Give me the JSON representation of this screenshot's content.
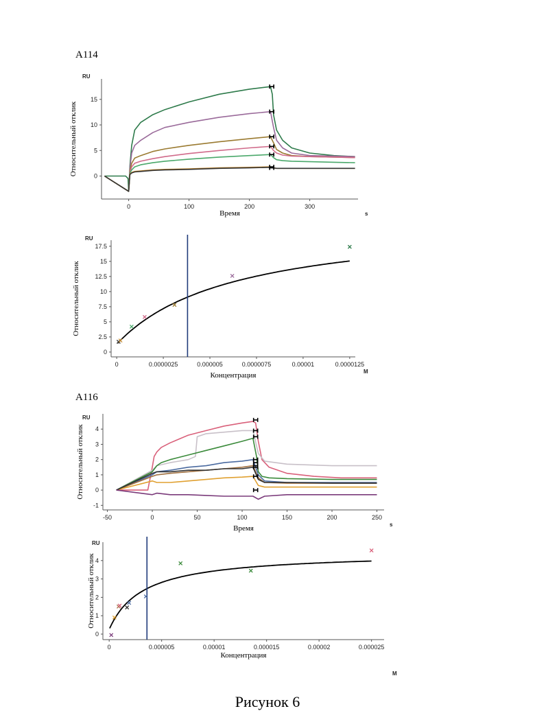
{
  "figure_caption": "Рисунок 6",
  "colors": {
    "axis": "#555555",
    "fit": "#000000",
    "vline": "#1f3a7a"
  },
  "chart_data": [
    {
      "id": "a114_sensorgram",
      "panel_label": "А114",
      "type": "line",
      "xlabel": "Время",
      "ylabel": "Относительный отклик",
      "x_unit": "s",
      "y_unit": "RU",
      "xlim": [
        -45,
        380
      ],
      "ylim": [
        -4.5,
        19
      ],
      "x_ticks": [
        0,
        100,
        200,
        300
      ],
      "y_ticks": [
        0,
        5,
        10,
        15
      ],
      "x_tick_labels": [
        "0",
        "100",
        "200",
        "300"
      ],
      "y_tick_labels": [
        "0",
        "5",
        "10",
        "15"
      ],
      "grid": false,
      "series": [
        {
          "color": "#2d7a4a",
          "x": [
            -40,
            -5,
            -1,
            0,
            2,
            5,
            10,
            20,
            40,
            60,
            100,
            150,
            200,
            235,
            238,
            240,
            245,
            255,
            270,
            300,
            340,
            375
          ],
          "y": [
            0,
            0,
            -0.5,
            -3,
            2,
            6,
            9,
            10.5,
            12,
            13,
            14.5,
            16,
            17,
            17.5,
            16,
            12,
            9,
            7,
            5.5,
            4.5,
            4,
            3.8
          ]
        },
        {
          "color": "#9a6a9a",
          "x": [
            -40,
            0,
            2,
            5,
            10,
            20,
            40,
            60,
            100,
            150,
            200,
            235,
            240,
            245,
            255,
            270,
            300,
            340,
            375
          ],
          "y": [
            0,
            -3,
            1.5,
            4.5,
            6,
            7,
            8.5,
            9.5,
            10.5,
            11.5,
            12.2,
            12.6,
            9.5,
            7,
            5.5,
            4.5,
            4,
            3.9,
            3.8
          ]
        },
        {
          "color": "#9a7a30",
          "x": [
            -40,
            0,
            2,
            5,
            10,
            20,
            40,
            60,
            100,
            150,
            200,
            235,
            240,
            245,
            255,
            270,
            300,
            340,
            375
          ],
          "y": [
            0,
            -3,
            1,
            2.5,
            3.5,
            4,
            4.8,
            5.3,
            6,
            6.7,
            7.3,
            7.7,
            6.5,
            5.2,
            4.5,
            4,
            3.8,
            3.7,
            3.6
          ]
        },
        {
          "color": "#d06a8a",
          "x": [
            -40,
            0,
            2,
            5,
            10,
            20,
            40,
            60,
            100,
            150,
            200,
            235,
            240,
            245,
            255,
            270,
            300,
            340,
            375
          ],
          "y": [
            0,
            -3,
            0.8,
            1.8,
            2.5,
            2.9,
            3.4,
            3.8,
            4.4,
            5,
            5.5,
            5.8,
            5,
            4.5,
            4.1,
            3.9,
            3.8,
            3.7,
            3.6
          ]
        },
        {
          "color": "#4aa86a",
          "x": [
            -40,
            0,
            2,
            5,
            10,
            20,
            40,
            60,
            100,
            150,
            200,
            235,
            240,
            245,
            255,
            270,
            300,
            340,
            375
          ],
          "y": [
            0,
            -3,
            0.6,
            1.2,
            1.8,
            2.2,
            2.6,
            2.9,
            3.3,
            3.7,
            4,
            4.2,
            3.6,
            3.2,
            3,
            2.9,
            2.8,
            2.7,
            2.6
          ]
        },
        {
          "color": "#c48a30",
          "x": [
            -40,
            0,
            2,
            5,
            10,
            20,
            40,
            60,
            100,
            150,
            200,
            235,
            240,
            245,
            255,
            270,
            300,
            340,
            375
          ],
          "y": [
            0,
            -3,
            0.4,
            0.7,
            0.9,
            1,
            1.2,
            1.3,
            1.4,
            1.6,
            1.7,
            1.8,
            1.6,
            1.5,
            1.5,
            1.5,
            1.5,
            1.5,
            1.5
          ]
        },
        {
          "color": "#333333",
          "x": [
            -40,
            0,
            2,
            5,
            10,
            20,
            40,
            60,
            100,
            150,
            200,
            235,
            240,
            245,
            255,
            270,
            300,
            340,
            375
          ],
          "y": [
            0,
            -3,
            0.3,
            0.6,
            0.8,
            0.9,
            1.1,
            1.2,
            1.3,
            1.5,
            1.6,
            1.7,
            1.6,
            1.5,
            1.5,
            1.5,
            1.5,
            1.5,
            1.5
          ]
        }
      ],
      "markers_x": 237,
      "markers_y": [
        17.5,
        12.6,
        7.7,
        5.8,
        4.2,
        1.8,
        1.6
      ],
      "marker_color": "#000000"
    },
    {
      "id": "a114_fit",
      "panel_label": "",
      "type": "scatter",
      "xlabel": "Концентрация",
      "ylabel": "Относительный отклик",
      "x_unit": "M",
      "y_unit": "RU",
      "xlim": [
        -3e-07,
        1.28e-05
      ],
      "ylim": [
        -0.8,
        18.5
      ],
      "x_ticks": [
        0,
        2.5e-06,
        5e-06,
        7.5e-06,
        1e-05,
        1.25e-05
      ],
      "y_ticks": [
        0,
        2.5,
        5,
        7.5,
        10,
        12.5,
        15,
        17.5
      ],
      "x_tick_labels": [
        "0",
        "0.0000025",
        "0.000005",
        "0.0000075",
        "0.00001",
        "0.0000125"
      ],
      "y_tick_labels": [
        "0",
        "2.5",
        "5",
        "7.5",
        "10",
        "12.5",
        "15",
        "17.5"
      ],
      "grid": false,
      "points": [
        {
          "x": 1e-07,
          "y": 1.7,
          "color": "#333333"
        },
        {
          "x": 2e-07,
          "y": 1.9,
          "color": "#c48a30"
        },
        {
          "x": 8e-07,
          "y": 4.2,
          "color": "#4aa86a"
        },
        {
          "x": 1.5e-06,
          "y": 5.8,
          "color": "#d06a8a"
        },
        {
          "x": 3.1e-06,
          "y": 7.8,
          "color": "#9a7a30"
        },
        {
          "x": 6.2e-06,
          "y": 12.6,
          "color": "#9a6a9a"
        },
        {
          "x": 1.25e-05,
          "y": 17.4,
          "color": "#2d7a4a"
        }
      ],
      "fit": {
        "rmax": 22.0,
        "kd": 6.3e-06,
        "offset": 1.3
      },
      "vline_x": 3.8e-06
    },
    {
      "id": "a116_sensorgram",
      "panel_label": "А116",
      "type": "line",
      "xlabel": "Время",
      "ylabel": "Относительный отклик",
      "x_unit": "s",
      "y_unit": "RU",
      "xlim": [
        -55,
        258
      ],
      "ylim": [
        -1.3,
        5.0
      ],
      "x_ticks": [
        -50,
        0,
        50,
        100,
        150,
        200,
        250
      ],
      "y_ticks": [
        -1,
        0,
        1,
        2,
        3,
        4
      ],
      "x_tick_labels": [
        "-50",
        "0",
        "50",
        "100",
        "150",
        "200",
        "250"
      ],
      "y_tick_labels": [
        "-1",
        "0",
        "1",
        "2",
        "3",
        "4"
      ],
      "grid": false,
      "series": [
        {
          "color": "#d9607a",
          "x": [
            -40,
            -5,
            0,
            2,
            5,
            10,
            20,
            40,
            60,
            80,
            100,
            112,
            115,
            118,
            122,
            130,
            150,
            180,
            210,
            250
          ],
          "y": [
            0,
            0,
            1.5,
            2.2,
            2.5,
            2.8,
            3.1,
            3.6,
            3.9,
            4.2,
            4.4,
            4.5,
            4.4,
            3.2,
            2.0,
            1.5,
            1.1,
            0.9,
            0.8,
            0.8
          ]
        },
        {
          "color": "#c8c0c8",
          "x": [
            -40,
            0,
            5,
            20,
            40,
            48,
            50,
            60,
            80,
            100,
            112,
            118,
            125,
            150,
            200,
            250
          ],
          "y": [
            0,
            1.3,
            1.6,
            1.8,
            2.0,
            2.2,
            3.5,
            3.7,
            3.8,
            3.9,
            3.9,
            2.4,
            1.9,
            1.7,
            1.6,
            1.6
          ]
        },
        {
          "color": "#3a8a3a",
          "x": [
            -40,
            0,
            5,
            10,
            20,
            40,
            60,
            80,
            100,
            112,
            116,
            118,
            122,
            130,
            150,
            200,
            250
          ],
          "y": [
            0,
            1.2,
            1.6,
            1.8,
            2.0,
            2.3,
            2.6,
            2.9,
            3.2,
            3.4,
            2.2,
            1.2,
            0.9,
            0.8,
            0.75,
            0.7,
            0.7
          ]
        },
        {
          "color": "#4a6aa0",
          "x": [
            -40,
            0,
            5,
            20,
            40,
            60,
            80,
            100,
            112,
            118,
            125,
            150,
            200,
            250
          ],
          "y": [
            0,
            1.0,
            1.2,
            1.3,
            1.5,
            1.6,
            1.8,
            1.9,
            2.0,
            1.0,
            0.6,
            0.5,
            0.5,
            0.5
          ]
        },
        {
          "color": "#a07040",
          "x": [
            -40,
            0,
            5,
            20,
            40,
            60,
            80,
            100,
            112,
            118,
            125,
            150,
            200,
            250
          ],
          "y": [
            0,
            0.9,
            1.0,
            1.1,
            1.2,
            1.3,
            1.4,
            1.5,
            1.6,
            0.8,
            0.5,
            0.45,
            0.45,
            0.45
          ]
        },
        {
          "color": "#e0a030",
          "x": [
            -40,
            0,
            5,
            20,
            40,
            60,
            80,
            100,
            112,
            118,
            125,
            150,
            200,
            250
          ],
          "y": [
            0,
            0.6,
            0.5,
            0.5,
            0.6,
            0.7,
            0.8,
            0.85,
            0.9,
            0.3,
            0.2,
            0.2,
            0.2,
            0.2
          ]
        },
        {
          "color": "#333333",
          "x": [
            -40,
            0,
            5,
            20,
            40,
            60,
            80,
            100,
            112,
            118,
            125,
            150,
            200,
            250
          ],
          "y": [
            0,
            1.1,
            1.2,
            1.2,
            1.3,
            1.3,
            1.4,
            1.4,
            1.5,
            0.7,
            0.5,
            0.5,
            0.45,
            0.45
          ]
        },
        {
          "color": "#7a3a7a",
          "x": [
            -40,
            0,
            5,
            20,
            40,
            60,
            80,
            100,
            112,
            118,
            125,
            150,
            200,
            250
          ],
          "y": [
            0,
            -0.3,
            -0.2,
            -0.3,
            -0.3,
            -0.35,
            -0.4,
            -0.4,
            -0.4,
            -0.6,
            -0.4,
            -0.3,
            -0.3,
            -0.3
          ]
        }
      ],
      "markers_x": 115,
      "markers_y": [
        4.6,
        3.9,
        3.5,
        2.0,
        1.8,
        1.6,
        1.5,
        0.9,
        0.0
      ],
      "marker_color": "#000000"
    },
    {
      "id": "a116_fit",
      "panel_label": "",
      "type": "scatter",
      "xlabel": "Концентрация",
      "ylabel": "Относительный отклик",
      "x_unit": "M",
      "y_unit": "RU",
      "xlim": [
        -6e-07,
        2.62e-05
      ],
      "ylim": [
        -0.3,
        5.0
      ],
      "x_ticks": [
        0,
        5e-06,
        1e-05,
        1.5e-05,
        2e-05,
        2.5e-05
      ],
      "y_ticks": [
        0,
        1,
        2,
        3,
        4
      ],
      "x_tick_labels": [
        "0",
        "0.000005",
        "0.00001",
        "0.000015",
        "0.00002",
        "0.000025"
      ],
      "y_tick_labels": [
        "0",
        "1",
        "2",
        "3",
        "4"
      ],
      "grid": false,
      "points": [
        {
          "x": 2e-07,
          "y": -0.05,
          "color": "#7a3a7a"
        },
        {
          "x": 5e-07,
          "y": 0.9,
          "color": "#e0a030"
        },
        {
          "x": 9e-07,
          "y": 1.5,
          "color": "#a07040"
        },
        {
          "x": 1e-06,
          "y": 1.55,
          "color": "#d9607a"
        },
        {
          "x": 1.7e-06,
          "y": 1.45,
          "color": "#333333"
        },
        {
          "x": 1.9e-06,
          "y": 1.7,
          "color": "#4a6aa0"
        },
        {
          "x": 3.5e-06,
          "y": 2.05,
          "color": "#4a6aa0"
        },
        {
          "x": 6.8e-06,
          "y": 3.85,
          "color": "#3a8a3a"
        },
        {
          "x": 1.35e-05,
          "y": 3.45,
          "color": "#3a8a3a"
        },
        {
          "x": 2.5e-05,
          "y": 4.55,
          "color": "#d9607a"
        }
      ],
      "fit": {
        "rmax": 4.45,
        "kd": 3.2e-06,
        "offset": 0.25
      },
      "vline_x": 3.6e-06
    }
  ]
}
